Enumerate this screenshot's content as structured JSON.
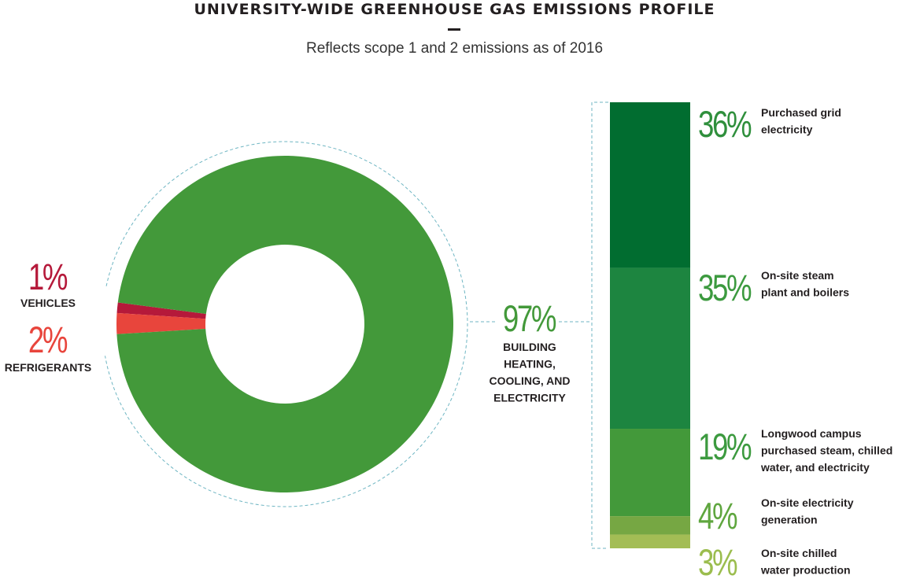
{
  "header": {
    "title": "UNIVERSITY-WIDE GREENHOUSE GAS EMISSIONS PROFILE",
    "subtitle": "Reflects scope 1 and 2 emissions as of 2016"
  },
  "colors": {
    "building": "#43993a",
    "vehicles": "#b5193a",
    "refrigerants": "#e8453c",
    "connector": "#6fb6c3",
    "grid": "#016d30",
    "steam": "#1d8540",
    "longwood": "#43993a",
    "generation": "#76a743",
    "chilled": "#a3bd55"
  },
  "chart_data": [
    {
      "type": "pie",
      "subtype": "donut",
      "slices": [
        {
          "label": "VEHICLES",
          "value": 1,
          "value_label": "1%",
          "color": "#b5193a"
        },
        {
          "label": "REFRIGERANTS",
          "value": 2,
          "value_label": "2%",
          "color": "#e8453c"
        },
        {
          "label": "BUILDING HEATING, COOLING, AND ELECTRICITY",
          "label_lines": [
            "BUILDING",
            "HEATING,",
            "COOLING, AND",
            "ELECTRICITY"
          ],
          "value": 97,
          "value_label": "97%",
          "color": "#43993a"
        }
      ]
    },
    {
      "type": "bar",
      "subtype": "stacked-100",
      "segments": [
        {
          "label": "Purchased grid electricity",
          "label_lines": [
            "Purchased grid",
            "electricity"
          ],
          "value": 36,
          "value_label": "36%",
          "color": "#016d30"
        },
        {
          "label": "On-site steam plant and boilers",
          "label_lines": [
            "On-site steam",
            "plant and boilers"
          ],
          "value": 35,
          "value_label": "35%",
          "color": "#1d8540"
        },
        {
          "label": "Longwood campus purchased steam, chilled water, and electricity",
          "label_lines": [
            "Longwood campus",
            "purchased steam, chilled",
            "water, and electricity"
          ],
          "value": 19,
          "value_label": "19%",
          "color": "#43993a"
        },
        {
          "label": "On-site electricity generation",
          "label_lines": [
            "On-site electricity",
            "generation"
          ],
          "value": 4,
          "value_label": "4%",
          "color": "#76a743"
        },
        {
          "label": "On-site chilled water production",
          "label_lines": [
            "On-site chilled",
            "water production"
          ],
          "value": 3,
          "value_label": "3%",
          "color": "#a3bd55"
        }
      ]
    }
  ]
}
